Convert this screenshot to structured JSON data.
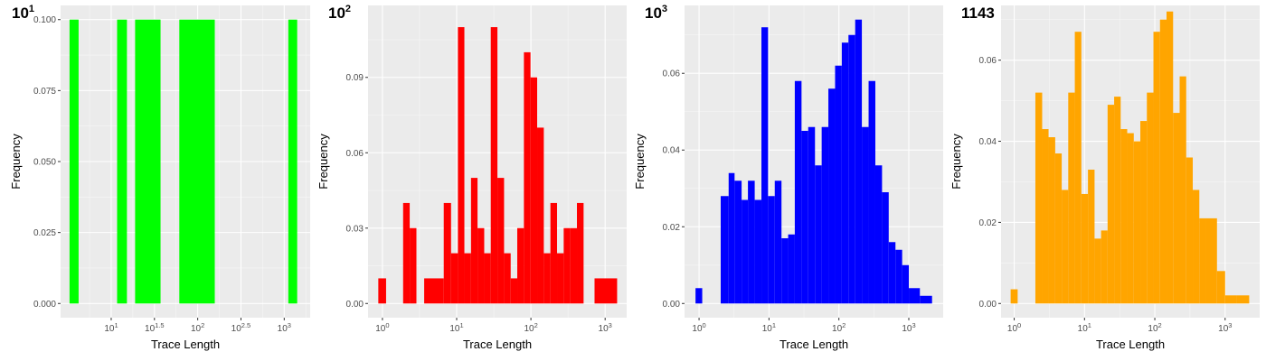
{
  "chart_data": [
    {
      "type": "bar",
      "title": "10",
      "title_sup": "1",
      "xlabel": "Trace Length",
      "ylabel": "Frequency",
      "x_scale": "log10",
      "xlim": [
        2.6,
        1995
      ],
      "ylim": [
        -0.005,
        0.105
      ],
      "y_ticks": [
        "0.000",
        "0.025",
        "0.050",
        "0.075",
        "0.100"
      ],
      "y_tick_values": [
        0,
        0.025,
        0.05,
        0.075,
        0.1
      ],
      "x_ticks": [
        {
          "value": 10,
          "base": "10",
          "exp": "1"
        },
        {
          "value": 31.62,
          "base": "10",
          "exp": "1.5"
        },
        {
          "value": 100,
          "base": "10",
          "exp": "2"
        },
        {
          "value": 316.2,
          "base": "10",
          "exp": "2.5"
        },
        {
          "value": 1000,
          "base": "10",
          "exp": "3"
        }
      ],
      "color": "#00ff00",
      "grid": true,
      "bars": [
        {
          "x0": 3.3,
          "x1": 4.2,
          "value": 0.1
        },
        {
          "x0": 11.7,
          "x1": 15.2,
          "value": 0.1
        },
        {
          "x0": 18.9,
          "x1": 37.2,
          "value": 0.1
        },
        {
          "x0": 61.3,
          "x1": 157.5,
          "value": 0.1
        },
        {
          "x0": 1115,
          "x1": 1412,
          "value": 0.1
        }
      ]
    },
    {
      "type": "bar",
      "title": "10",
      "title_sup": "2",
      "xlabel": "Trace Length",
      "ylabel": "Frequency",
      "x_scale": "log10",
      "xlim": [
        0.64,
        1950
      ],
      "ylim": [
        -0.00565,
        0.11865
      ],
      "y_ticks": [
        "0.00",
        "0.03",
        "0.06",
        "0.09"
      ],
      "y_tick_values": [
        0,
        0.03,
        0.06,
        0.09
      ],
      "x_ticks": [
        {
          "value": 1,
          "base": "10",
          "exp": "0"
        },
        {
          "value": 10,
          "base": "10",
          "exp": "1"
        },
        {
          "value": 100,
          "base": "10",
          "exp": "2"
        },
        {
          "value": 1000,
          "base": "10",
          "exp": "3"
        }
      ],
      "color": "#ff0000",
      "grid": true,
      "bars": [
        {
          "x0": 0.88,
          "x1": 1.12,
          "value": 0.01
        },
        {
          "x0": 1.9,
          "x1": 2.33,
          "value": 0.04
        },
        {
          "x0": 2.33,
          "x1": 2.87,
          "value": 0.03
        },
        {
          "x0": 3.65,
          "x1": 6.7,
          "value": 0.01
        },
        {
          "x0": 6.7,
          "x1": 8.4,
          "value": 0.04
        },
        {
          "x0": 8.4,
          "x1": 10.4,
          "value": 0.02
        },
        {
          "x0": 10.4,
          "x1": 12.7,
          "value": 0.11
        },
        {
          "x0": 12.7,
          "x1": 15.6,
          "value": 0.02
        },
        {
          "x0": 15.6,
          "x1": 19.1,
          "value": 0.05
        },
        {
          "x0": 19.1,
          "x1": 23.5,
          "value": 0.03
        },
        {
          "x0": 23.5,
          "x1": 28.8,
          "value": 0.02
        },
        {
          "x0": 28.8,
          "x1": 35.4,
          "value": 0.11
        },
        {
          "x0": 35.4,
          "x1": 43.5,
          "value": 0.05
        },
        {
          "x0": 43.5,
          "x1": 53.4,
          "value": 0.02
        },
        {
          "x0": 53.4,
          "x1": 65.5,
          "value": 0.01
        },
        {
          "x0": 65.5,
          "x1": 80.5,
          "value": 0.03
        },
        {
          "x0": 80.5,
          "x1": 98.8,
          "value": 0.1
        },
        {
          "x0": 98.8,
          "x1": 121.4,
          "value": 0.09
        },
        {
          "x0": 121.4,
          "x1": 149.2,
          "value": 0.07
        },
        {
          "x0": 149.2,
          "x1": 183.2,
          "value": 0.02
        },
        {
          "x0": 183.2,
          "x1": 225,
          "value": 0.04
        },
        {
          "x0": 225,
          "x1": 276.5,
          "value": 0.02
        },
        {
          "x0": 276.5,
          "x1": 339.5,
          "value": 0.03
        },
        {
          "x0": 339.5,
          "x1": 417,
          "value": 0.03
        },
        {
          "x0": 417,
          "x1": 512.5,
          "value": 0.04
        },
        {
          "x0": 720,
          "x1": 1450,
          "value": 0.01
        }
      ]
    },
    {
      "type": "bar",
      "title": "10",
      "title_sup": "3",
      "xlabel": "Trace Length",
      "ylabel": "Frequency",
      "x_scale": "log10",
      "xlim": [
        0.62,
        3100
      ],
      "ylim": [
        -0.0037,
        0.0777
      ],
      "y_ticks": [
        "0.00",
        "0.02",
        "0.04",
        "0.06"
      ],
      "y_tick_values": [
        0,
        0.02,
        0.04,
        0.06
      ],
      "x_ticks": [
        {
          "value": 1,
          "base": "10",
          "exp": "0"
        },
        {
          "value": 10,
          "base": "10",
          "exp": "1"
        },
        {
          "value": 100,
          "base": "10",
          "exp": "2"
        },
        {
          "value": 1000,
          "base": "10",
          "exp": "3"
        }
      ],
      "color": "#0000ff",
      "grid": true,
      "bars": [
        {
          "x0": 0.89,
          "x1": 1.11,
          "value": 0.004
        },
        {
          "x0": 2.04,
          "x1": 2.65,
          "value": 0.028
        },
        {
          "x0": 2.65,
          "x1": 3.22,
          "value": 0.034
        },
        {
          "x0": 3.22,
          "x1": 4.06,
          "value": 0.032
        },
        {
          "x0": 4.06,
          "x1": 5.0,
          "value": 0.027
        },
        {
          "x0": 5.0,
          "x1": 6.25,
          "value": 0.032
        },
        {
          "x0": 6.25,
          "x1": 7.8,
          "value": 0.027
        },
        {
          "x0": 7.8,
          "x1": 9.7,
          "value": 0.072
        },
        {
          "x0": 9.7,
          "x1": 12.1,
          "value": 0.028
        },
        {
          "x0": 12.1,
          "x1": 15.1,
          "value": 0.032
        },
        {
          "x0": 15.1,
          "x1": 18.8,
          "value": 0.017
        },
        {
          "x0": 18.8,
          "x1": 23.4,
          "value": 0.018
        },
        {
          "x0": 23.4,
          "x1": 29.2,
          "value": 0.058
        },
        {
          "x0": 29.2,
          "x1": 36.4,
          "value": 0.045
        },
        {
          "x0": 36.4,
          "x1": 45.5,
          "value": 0.046
        },
        {
          "x0": 45.5,
          "x1": 56.7,
          "value": 0.036
        },
        {
          "x0": 56.7,
          "x1": 70.7,
          "value": 0.046
        },
        {
          "x0": 70.7,
          "x1": 88.2,
          "value": 0.056
        },
        {
          "x0": 88.2,
          "x1": 110,
          "value": 0.062
        },
        {
          "x0": 110,
          "x1": 137,
          "value": 0.068
        },
        {
          "x0": 137,
          "x1": 171,
          "value": 0.07
        },
        {
          "x0": 171,
          "x1": 213,
          "value": 0.074
        },
        {
          "x0": 213,
          "x1": 266,
          "value": 0.046
        },
        {
          "x0": 266,
          "x1": 332,
          "value": 0.058
        },
        {
          "x0": 332,
          "x1": 414,
          "value": 0.036
        },
        {
          "x0": 414,
          "x1": 516,
          "value": 0.029
        },
        {
          "x0": 516,
          "x1": 644,
          "value": 0.016
        },
        {
          "x0": 644,
          "x1": 803,
          "value": 0.014
        },
        {
          "x0": 803,
          "x1": 1001,
          "value": 0.01
        },
        {
          "x0": 1001,
          "x1": 1440,
          "value": 0.004
        },
        {
          "x0": 1440,
          "x1": 2150,
          "value": 0.002
        }
      ]
    },
    {
      "type": "bar",
      "title": "1143",
      "title_sup": "",
      "xlabel": "Trace Length",
      "ylabel": "Frequency",
      "x_scale": "log10",
      "xlim": [
        0.65,
        3100
      ],
      "ylim": [
        -0.0035,
        0.0735
      ],
      "y_ticks": [
        "0.00",
        "0.02",
        "0.04",
        "0.06"
      ],
      "y_tick_values": [
        0,
        0.02,
        0.04,
        0.06
      ],
      "x_ticks": [
        {
          "value": 1,
          "base": "10",
          "exp": "0"
        },
        {
          "value": 10,
          "base": "10",
          "exp": "1"
        },
        {
          "value": 100,
          "base": "10",
          "exp": "2"
        },
        {
          "value": 1000,
          "base": "10",
          "exp": "3"
        }
      ],
      "color": "#ffa500",
      "grid": true,
      "bars": [
        {
          "x0": 0.89,
          "x1": 1.12,
          "value": 0.0035
        },
        {
          "x0": 2.0,
          "x1": 2.5,
          "value": 0.052
        },
        {
          "x0": 2.5,
          "x1": 3.08,
          "value": 0.043
        },
        {
          "x0": 3.08,
          "x1": 3.83,
          "value": 0.041
        },
        {
          "x0": 3.83,
          "x1": 4.74,
          "value": 0.037
        },
        {
          "x0": 4.74,
          "x1": 5.87,
          "value": 0.028
        },
        {
          "x0": 5.87,
          "x1": 7.28,
          "value": 0.052
        },
        {
          "x0": 7.28,
          "x1": 9.02,
          "value": 0.067
        },
        {
          "x0": 9.02,
          "x1": 11.2,
          "value": 0.027
        },
        {
          "x0": 11.2,
          "x1": 13.9,
          "value": 0.033
        },
        {
          "x0": 13.9,
          "x1": 17.2,
          "value": 0.016
        },
        {
          "x0": 17.2,
          "x1": 21.3,
          "value": 0.018
        },
        {
          "x0": 21.3,
          "x1": 26.4,
          "value": 0.049
        },
        {
          "x0": 26.4,
          "x1": 32.7,
          "value": 0.051
        },
        {
          "x0": 32.7,
          "x1": 40.5,
          "value": 0.043
        },
        {
          "x0": 40.5,
          "x1": 50.2,
          "value": 0.042
        },
        {
          "x0": 50.2,
          "x1": 62.2,
          "value": 0.04
        },
        {
          "x0": 62.2,
          "x1": 77.1,
          "value": 0.045
        },
        {
          "x0": 77.1,
          "x1": 95.6,
          "value": 0.052
        },
        {
          "x0": 95.6,
          "x1": 118.5,
          "value": 0.067
        },
        {
          "x0": 118.5,
          "x1": 146.8,
          "value": 0.07
        },
        {
          "x0": 146.8,
          "x1": 182,
          "value": 0.072
        },
        {
          "x0": 182,
          "x1": 225.5,
          "value": 0.047
        },
        {
          "x0": 225.5,
          "x1": 279.5,
          "value": 0.056
        },
        {
          "x0": 279.5,
          "x1": 346.5,
          "value": 0.036
        },
        {
          "x0": 346.5,
          "x1": 429.5,
          "value": 0.028
        },
        {
          "x0": 429.5,
          "x1": 532,
          "value": 0.021
        },
        {
          "x0": 532,
          "x1": 766,
          "value": 0.021
        },
        {
          "x0": 766,
          "x1": 1000,
          "value": 0.008
        },
        {
          "x0": 1000,
          "x1": 1460,
          "value": 0.002
        },
        {
          "x0": 1460,
          "x1": 2200,
          "value": 0.002
        }
      ]
    }
  ]
}
